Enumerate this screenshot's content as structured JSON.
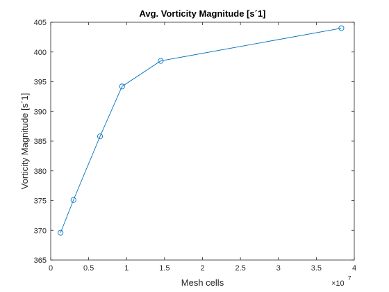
{
  "chart_data": {
    "type": "line",
    "title": "Avg. Vorticity Magnitude [s´1]",
    "xlabel": "Mesh cells",
    "ylabel": "Vorticity Magnitude [s´1]",
    "x_exponent_base": "×10",
    "x_exponent_power": "7",
    "xlim": [
      0,
      4
    ],
    "ylim": [
      365,
      405
    ],
    "xticks": [
      "0",
      "0.5",
      "1",
      "1.5",
      "2",
      "2.5",
      "3",
      "3.5",
      "4"
    ],
    "yticks": [
      "365",
      "370",
      "375",
      "380",
      "385",
      "390",
      "395",
      "400",
      "405"
    ],
    "grid": false,
    "series": [
      {
        "color": "#0072BD",
        "marker": "circle",
        "x": [
          0.13,
          0.3,
          0.65,
          0.94,
          1.45,
          3.83
        ],
        "y": [
          369.6,
          375.1,
          385.8,
          394.2,
          398.5,
          404.0
        ]
      }
    ]
  }
}
